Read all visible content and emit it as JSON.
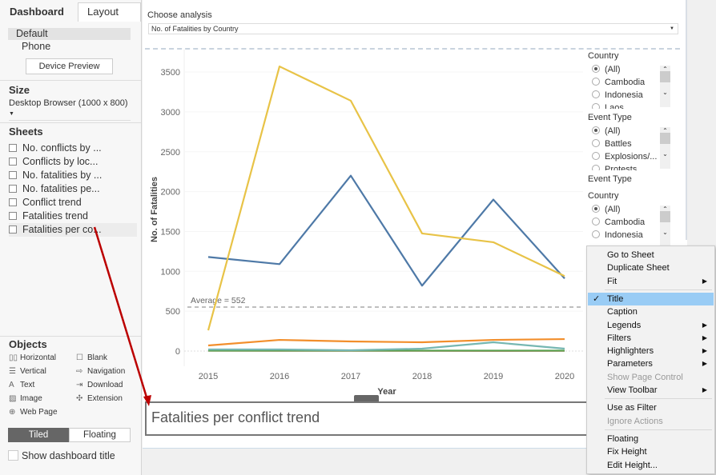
{
  "left": {
    "tabs": [
      "Dashboard",
      "Layout"
    ],
    "devices": [
      "Default",
      "Phone"
    ],
    "device_preview": "Device Preview",
    "size_label": "Size",
    "size_value": "Desktop Browser (1000 x 800)",
    "sheets_label": "Sheets",
    "sheets": [
      "No. conflicts by ...",
      "Conflicts by loc...",
      "No. fatalities by ...",
      "No. fatalities pe...",
      "Conflict trend",
      "Fatalities trend",
      "Fatalities per co..."
    ],
    "objects_label": "Objects",
    "objects": [
      "Horizontal",
      "Blank",
      "Vertical",
      "Navigation",
      "Text",
      "Download",
      "Image",
      "Extension",
      "Web Page"
    ],
    "tiled": "Tiled",
    "floating": "Floating",
    "show_title": "Show dashboard title"
  },
  "param": {
    "label": "Choose analysis",
    "value": "No. of Fatalities by Country"
  },
  "filters": [
    {
      "title": "Country",
      "items": [
        "(All)",
        "Cambodia",
        "Indonesia",
        "Laos"
      ]
    },
    {
      "title": "Event Type",
      "items": [
        "(All)",
        "Battles",
        "Explosions/...",
        "Protests"
      ]
    },
    {
      "title": "Event Type"
    },
    {
      "title": "Country",
      "items": [
        "(All)",
        "Cambodia",
        "Indonesia"
      ]
    }
  ],
  "title_box": "Fatalities per conflict trend",
  "menu": {
    "items": [
      "Go to Sheet",
      "Duplicate Sheet",
      "Fit",
      "Title",
      "Caption",
      "Legends",
      "Filters",
      "Highlighters",
      "Parameters",
      "Show Page Control",
      "View Toolbar",
      "Use as Filter",
      "Ignore Actions",
      "Floating",
      "Fix Height",
      "Edit Height..."
    ]
  },
  "chart_data": {
    "type": "line",
    "xlabel": "Year",
    "ylabel": "No. of Fatalities",
    "x": [
      2015,
      2016,
      2017,
      2018,
      2019,
      2020
    ],
    "ylim": [
      -300,
      3650
    ],
    "yticks": [
      0,
      500,
      1000,
      1500,
      2000,
      2500,
      3000,
      3500
    ],
    "average_label": "Average = 552",
    "average": 552,
    "series": [
      {
        "color": "#e8c347",
        "values": [
          260,
          3570,
          3140,
          1475,
          1365,
          940
        ]
      },
      {
        "color": "#4e79a7",
        "values": [
          1180,
          1090,
          2200,
          820,
          1900,
          910
        ]
      },
      {
        "color": "#f28e2b",
        "values": [
          70,
          140,
          120,
          110,
          140,
          150
        ]
      },
      {
        "color": "#76b7b2",
        "values": [
          20,
          20,
          10,
          30,
          110,
          30
        ]
      },
      {
        "color": "#59a14f",
        "values": [
          5,
          5,
          5,
          5,
          5,
          5
        ]
      },
      {
        "color": "#e15759",
        "values": [
          5,
          3,
          3,
          3,
          2,
          3
        ]
      }
    ]
  }
}
